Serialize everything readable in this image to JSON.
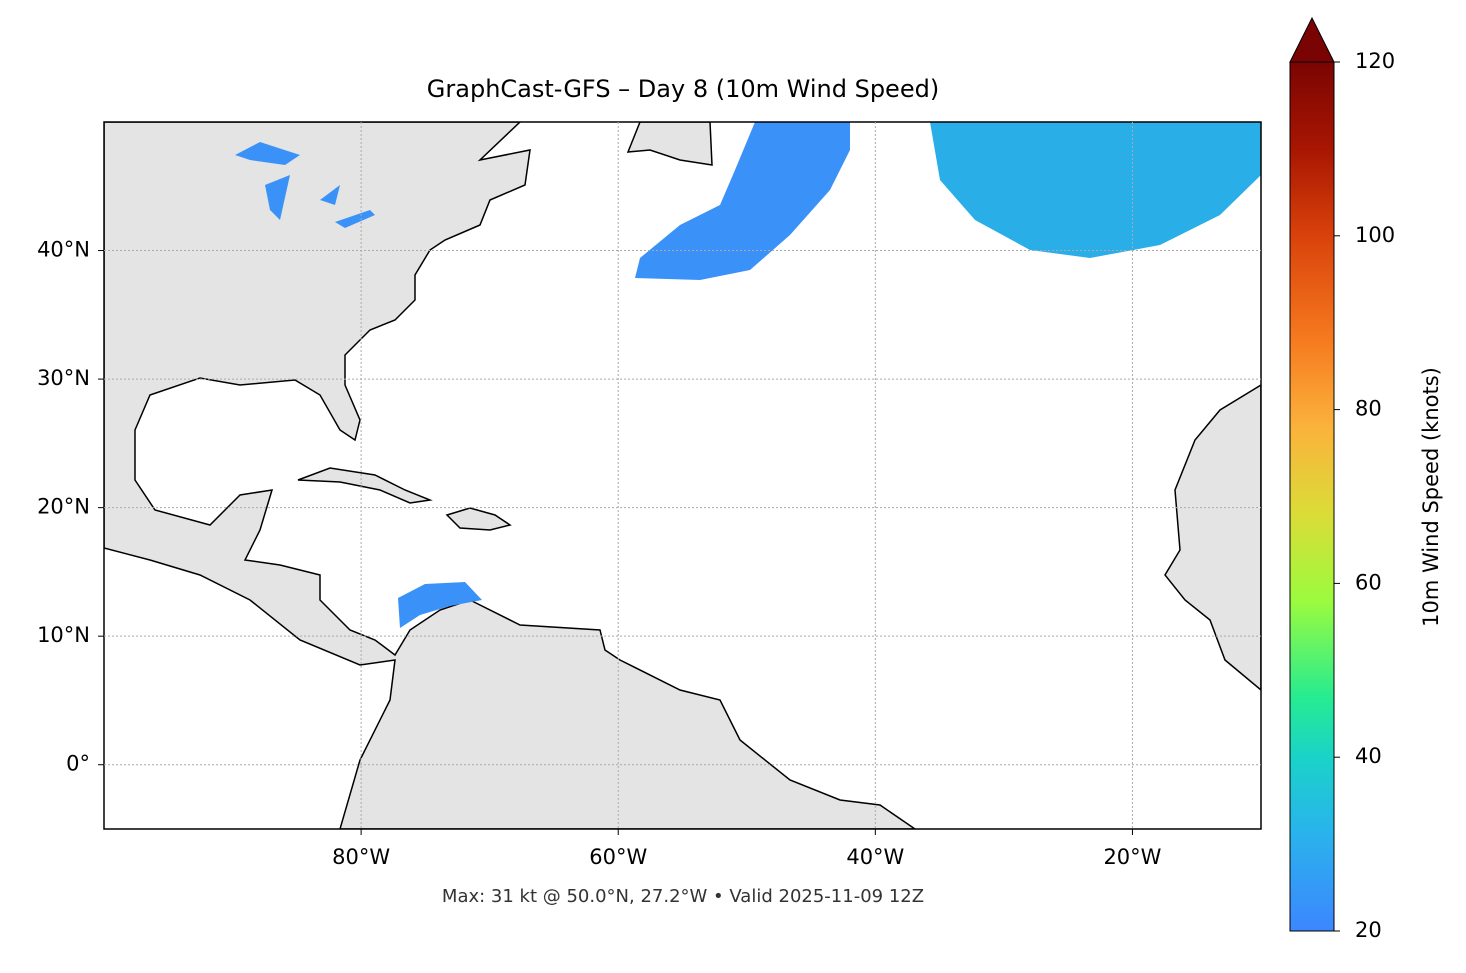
{
  "chart_data": {
    "type": "map",
    "title": "GraphCast-GFS – Day 8 (10m Wind Speed)",
    "footnote": "Max: 31 kt @ 50.0°N, 27.2°W • Valid 2025-11-09 12Z",
    "xlim": [
      -100,
      -10
    ],
    "ylim": [
      -5,
      50
    ],
    "xticks": [
      {
        "value": -80,
        "label": "80°W"
      },
      {
        "value": -60,
        "label": "60°W"
      },
      {
        "value": -40,
        "label": "40°W"
      },
      {
        "value": -20,
        "label": "20°W"
      }
    ],
    "yticks": [
      {
        "value": 0,
        "label": "0°"
      },
      {
        "value": 10,
        "label": "10°N"
      },
      {
        "value": 20,
        "label": "20°N"
      },
      {
        "value": 30,
        "label": "30°N"
      },
      {
        "value": 40,
        "label": "40°N"
      }
    ],
    "grid": true,
    "colorbar": {
      "label": "10m Wind Speed (knots)",
      "lim": [
        20,
        120
      ],
      "ticks": [
        20,
        40,
        60,
        80,
        100,
        120
      ],
      "extend": "max",
      "colormap": "turbo"
    }
  }
}
